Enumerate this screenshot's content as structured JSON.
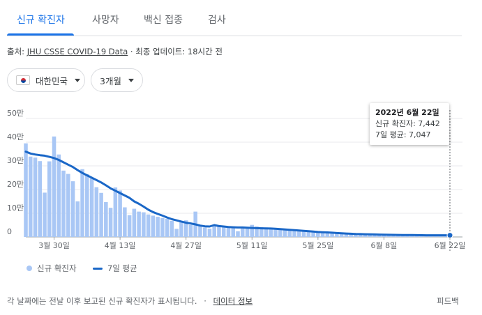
{
  "tabs": [
    {
      "label": "신규 확진자",
      "active": true
    },
    {
      "label": "사망자"
    },
    {
      "label": "백신 접종"
    },
    {
      "label": "검사"
    }
  ],
  "source": {
    "prefix": "출처:",
    "link": "JHU CSSE COVID-19 Data",
    "separator": "·",
    "updated": "최종 업데이트: 18시간 전"
  },
  "filters": {
    "region": "대한민국",
    "region_icon": "korea-flag-icon",
    "period": "3개월"
  },
  "tooltip": {
    "date": "2022년 6월 22일",
    "cases": "신규 확진자: 7,442",
    "avg": "7일 평균: 7,047"
  },
  "legend": {
    "bars": "신규 확진자",
    "line": "7일 평균"
  },
  "footer": {
    "note": "각 날짜에는 전날 이후 보고된 신규 확진자가 표시됩니다.",
    "separator": "·",
    "data_info": "데이터 정보",
    "feedback": "피드백"
  },
  "colors": {
    "accent": "#1a73e8",
    "bar": "#a9c7f5",
    "avg_line": "#1a67c7"
  },
  "chart_data": {
    "type": "bar",
    "ylim": [
      0,
      500000
    ],
    "y_ticks": [
      {
        "value": 0,
        "label": "0"
      },
      {
        "value": 100000,
        "label": "10만"
      },
      {
        "value": 200000,
        "label": "20만"
      },
      {
        "value": 300000,
        "label": "30만"
      },
      {
        "value": 400000,
        "label": "40만"
      },
      {
        "value": 500000,
        "label": "50만"
      }
    ],
    "start_date": "2022-03-24",
    "x_ticks": [
      {
        "index": 6,
        "label": "3월 30일"
      },
      {
        "index": 20,
        "label": "4월 13일"
      },
      {
        "index": 34,
        "label": "4월 27일"
      },
      {
        "index": 48,
        "label": "5월 11일"
      },
      {
        "index": 62,
        "label": "5월 25일"
      },
      {
        "index": 76,
        "label": "6월 8일"
      },
      {
        "index": 90,
        "label": "6월 22일"
      }
    ],
    "series": [
      {
        "name": "신규 확진자",
        "values": [
          395000,
          339000,
          335000,
          320000,
          187000,
          319000,
          424000,
          348000,
          280000,
          266000,
          235000,
          150000,
          286000,
          265000,
          250000,
          210000,
          186000,
          147000,
          123000,
          209000,
          196000,
          125000,
          92000,
          119000,
          107000,
          104000,
          95000,
          90000,
          85000,
          80000,
          77000,
          68000,
          34000,
          64000,
          70000,
          51000,
          107000,
          49000,
          40000,
          35000,
          52000,
          49000,
          46000,
          43000,
          40000,
          24000,
          38000,
          42000,
          51000,
          44000,
          42000,
          40000,
          38000,
          35000,
          33000,
          30000,
          29000,
          28000,
          26000,
          25000,
          25000,
          24000,
          23000,
          22000,
          20000,
          19000,
          17000,
          16000,
          15000,
          14000,
          13000,
          12000,
          12000,
          11000,
          10000,
          10000,
          9000,
          9000,
          8500,
          8000,
          8000,
          7800,
          7500,
          7500,
          7400,
          7300,
          7200,
          7300,
          7400,
          7400,
          7442
        ]
      },
      {
        "name": "7일 평균",
        "values": [
          360000,
          352000,
          348000,
          345000,
          343000,
          338000,
          333000,
          325000,
          315000,
          305000,
          295000,
          282000,
          270000,
          260000,
          250000,
          240000,
          230000,
          218000,
          205000,
          195000,
          185000,
          175000,
          165000,
          150000,
          140000,
          128000,
          115000,
          105000,
          97000,
          90000,
          82000,
          75000,
          70000,
          65000,
          60000,
          57000,
          53000,
          48000,
          45000,
          44000,
          50000,
          46000,
          44000,
          42000,
          41000,
          40000,
          40000,
          39000,
          38000,
          37000,
          36500,
          36000,
          35500,
          34500,
          33000,
          31500,
          30000,
          28500,
          27000,
          25500,
          24000,
          22500,
          21000,
          20000,
          19000,
          18000,
          16500,
          15500,
          14500,
          13500,
          12500,
          12000,
          11500,
          11000,
          10500,
          10000,
          9500,
          9000,
          8800,
          8500,
          8200,
          8000,
          7800,
          7600,
          7400,
          7200,
          7100,
          7050,
          7000,
          7020,
          7047
        ]
      }
    ]
  }
}
